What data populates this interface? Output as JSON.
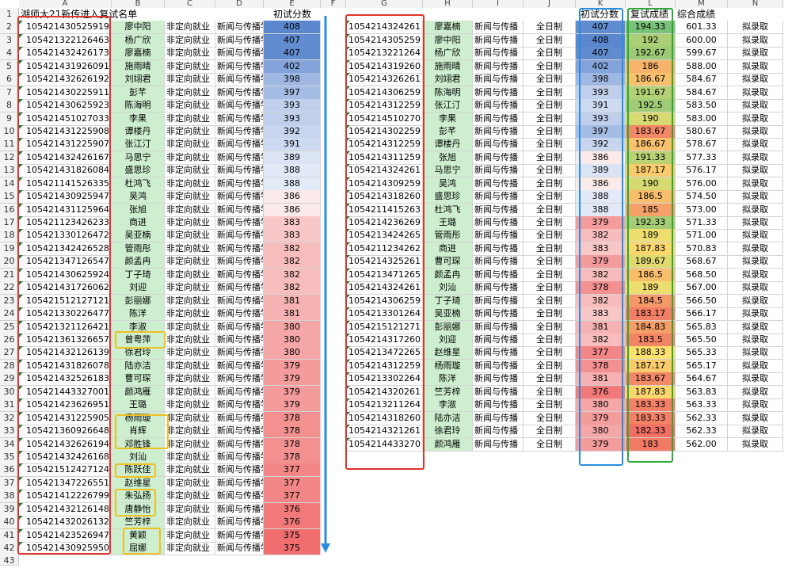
{
  "columns": [
    "A",
    "B",
    "C",
    "D",
    "E",
    "F",
    "G",
    "H",
    "I",
    "J",
    "K",
    "L",
    "M",
    "N"
  ],
  "row_numbers": [
    1,
    2,
    3,
    4,
    5,
    6,
    7,
    8,
    9,
    10,
    11,
    12,
    13,
    14,
    15,
    16,
    17,
    18,
    19,
    20,
    21,
    22,
    23,
    24,
    25,
    26,
    27,
    28,
    29,
    30,
    31,
    32,
    33,
    34,
    35,
    36,
    37,
    38,
    39,
    40,
    41,
    42,
    43
  ],
  "header_row": {
    "a1": "湖师大21新传进入复试名单",
    "e1": "初试分数",
    "k1": "初试分数",
    "l1": "复试成绩",
    "m1": "综合成绩"
  },
  "left_table": [
    [
      "105421430525919",
      "廖中阳",
      "非定向就业",
      "新闻与传播学",
      "408"
    ],
    [
      "105421322126463",
      "杨广欣",
      "非定向就业",
      "新闻与传播学",
      "407"
    ],
    [
      "105421432426173",
      "廖嘉楠",
      "非定向就业",
      "新闻与传播学",
      "407"
    ],
    [
      "105421431926091",
      "施雨晴",
      "非定向就业",
      "新闻与传播学",
      "402"
    ],
    [
      "105421432626192",
      "刘翊君",
      "非定向就业",
      "新闻与传播学",
      "398"
    ],
    [
      "105421430225911",
      "彭芊",
      "非定向就业",
      "新闻与传播学",
      "397"
    ],
    [
      "105421430625923",
      "陈海明",
      "非定向就业",
      "新闻与传播学",
      "393"
    ],
    [
      "105421451027033",
      "李果",
      "非定向就业",
      "新闻与传播学",
      "393"
    ],
    [
      "105421431225908",
      "谭楼丹",
      "非定向就业",
      "新闻与传播学",
      "392"
    ],
    [
      "105421431225907",
      "张江汀",
      "非定向就业",
      "新闻与传播学",
      "391"
    ],
    [
      "105421432426167",
      "马思宁",
      "非定向就业",
      "新闻与传播学",
      "389"
    ],
    [
      "105421431826084",
      "盛思珍",
      "非定向就业",
      "新闻与传播学",
      "388"
    ],
    [
      "105421141526335",
      "杜鸿飞",
      "非定向就业",
      "新闻与传播学",
      "388"
    ],
    [
      "105421430925947",
      "吴鸿",
      "非定向就业",
      "新闻与传播学",
      "386"
    ],
    [
      "105421431125964",
      "张旭",
      "非定向就业",
      "新闻与传播学",
      "386"
    ],
    [
      "105421123426233",
      "商进",
      "非定向就业",
      "新闻与传播学",
      "383"
    ],
    [
      "105421330126472",
      "吴亚楠",
      "非定向就业",
      "新闻与传播学",
      "383"
    ],
    [
      "105421342426528",
      "管雨彤",
      "非定向就业",
      "新闻与传播学",
      "382"
    ],
    [
      "105421347126547",
      "颜孟冉",
      "非定向就业",
      "新闻与传播学",
      "382"
    ],
    [
      "105421430625924",
      "丁子琦",
      "非定向就业",
      "新闻与传播学",
      "382"
    ],
    [
      "105421431726062",
      "刘迎",
      "非定向就业",
      "新闻与传播学",
      "382"
    ],
    [
      "105421512127121",
      "彭丽娜",
      "非定向就业",
      "新闻与传播学",
      "381"
    ],
    [
      "105421330226477",
      "陈洋",
      "非定向就业",
      "新闻与传播学",
      "381"
    ],
    [
      "105421321126421",
      "李淑",
      "非定向就业",
      "新闻与传播学",
      "380"
    ],
    [
      "105421361326657",
      "曾粤萍",
      "非定向就业",
      "新闻与传播学",
      "380"
    ],
    [
      "105421432126139",
      "徐君玲",
      "非定向就业",
      "新闻与传播学",
      "380"
    ],
    [
      "105421431826078",
      "陆亦洁",
      "非定向就业",
      "新闻与传播学",
      "379"
    ],
    [
      "105421432526183",
      "曹可琛",
      "非定向就业",
      "新闻与传播学",
      "379"
    ],
    [
      "105421443327001",
      "颜鸿雁",
      "非定向就业",
      "新闻与传播学",
      "379"
    ],
    [
      "105421423626951",
      "王璐",
      "非定向就业",
      "新闻与传播学",
      "379"
    ],
    [
      "105421431225905",
      "杨雨璇",
      "非定向就业",
      "新闻与传播学",
      "378"
    ],
    [
      "105421360926648",
      "肖辉",
      "非定向就业",
      "新闻与传播学",
      "378"
    ],
    [
      "105421432626194",
      "邓胜锋",
      "非定向就业",
      "新闻与传播学",
      "378"
    ],
    [
      "105421432426168",
      "刘汕",
      "非定向就业",
      "新闻与传播学",
      "378"
    ],
    [
      "105421512427124",
      "陈跃佳",
      "非定向就业",
      "新闻与传播学",
      "377"
    ],
    [
      "105421347226551",
      "赵维星",
      "非定向就业",
      "新闻与传播学",
      "377"
    ],
    [
      "105421412226799",
      "朱弘扬",
      "非定向就业",
      "新闻与传播学",
      "377"
    ],
    [
      "105421432126148",
      "唐静怡",
      "非定向就业",
      "新闻与传播学",
      "376"
    ],
    [
      "105421432026132",
      "竺芳梓",
      "非定向就业",
      "新闻与传播学",
      "376"
    ],
    [
      "105421423526947",
      "黄颖",
      "非定向就业",
      "新闻与传播学",
      "375"
    ],
    [
      "105421430925950",
      "屈娜",
      "非定向就业",
      "新闻与传播学",
      "375"
    ]
  ],
  "right_table": [
    [
      "1054214324261",
      "廖嘉楠",
      "新闻与传播",
      "全日制",
      "407",
      "194.33",
      "601.33",
      "拟录取"
    ],
    [
      "1054214305259",
      "廖中阳",
      "新闻与传播",
      "全日制",
      "408",
      "192",
      "600.00",
      "拟录取"
    ],
    [
      "1054213221264",
      "杨广欣",
      "新闻与传播",
      "全日制",
      "407",
      "192.67",
      "599.67",
      "拟录取"
    ],
    [
      "1054214319260",
      "施雨晴",
      "新闻与传播",
      "全日制",
      "402",
      "186",
      "588.00",
      "拟录取"
    ],
    [
      "1054214326261",
      "刘翊君",
      "新闻与传播",
      "全日制",
      "398",
      "186.67",
      "584.67",
      "拟录取"
    ],
    [
      "1054214306259",
      "陈海明",
      "新闻与传播",
      "全日制",
      "393",
      "191.67",
      "584.67",
      "拟录取"
    ],
    [
      "1054214312259",
      "张江汀",
      "新闻与传播",
      "全日制",
      "391",
      "192.5",
      "583.50",
      "拟录取"
    ],
    [
      "1054214510270",
      "李果",
      "新闻与传播",
      "全日制",
      "393",
      "190",
      "583.00",
      "拟录取"
    ],
    [
      "1054214302259",
      "彭芊",
      "新闻与传播",
      "全日制",
      "397",
      "183.67",
      "580.67",
      "拟录取"
    ],
    [
      "1054214312259",
      "谭楼丹",
      "新闻与传播",
      "全日制",
      "392",
      "186.67",
      "578.67",
      "拟录取"
    ],
    [
      "1054214311259",
      "张旭",
      "新闻与传播",
      "全日制",
      "386",
      "191.33",
      "577.33",
      "拟录取"
    ],
    [
      "1054214324261",
      "马思宁",
      "新闻与传播",
      "全日制",
      "389",
      "187.17",
      "576.17",
      "拟录取"
    ],
    [
      "1054214309259",
      "吴鸿",
      "新闻与传播",
      "全日制",
      "386",
      "190",
      "576.00",
      "拟录取"
    ],
    [
      "1054214318260",
      "盛思珍",
      "新闻与传播",
      "全日制",
      "388",
      "186.5",
      "574.50",
      "拟录取"
    ],
    [
      "1054211415263",
      "杜鸿飞",
      "新闻与传播",
      "全日制",
      "388",
      "185",
      "573.00",
      "拟录取"
    ],
    [
      "1054214236269",
      "王璐",
      "新闻与传播",
      "全日制",
      "379",
      "192.33",
      "571.33",
      "拟录取"
    ],
    [
      "1054213424265",
      "管雨彤",
      "新闻与传播",
      "全日制",
      "382",
      "189",
      "571.00",
      "拟录取"
    ],
    [
      "1054211234262",
      "商进",
      "新闻与传播",
      "全日制",
      "383",
      "187.83",
      "570.83",
      "拟录取"
    ],
    [
      "1054214325261",
      "曹可琛",
      "新闻与传播",
      "全日制",
      "379",
      "189.67",
      "568.67",
      "拟录取"
    ],
    [
      "1054213471265",
      "颜孟冉",
      "新闻与传播",
      "全日制",
      "382",
      "186.5",
      "568.50",
      "拟录取"
    ],
    [
      "1054214324261",
      "刘汕",
      "新闻与传播",
      "全日制",
      "378",
      "189",
      "567.00",
      "拟录取"
    ],
    [
      "1054214306259",
      "丁子琦",
      "新闻与传播",
      "全日制",
      "382",
      "184.5",
      "566.50",
      "拟录取"
    ],
    [
      "1054213301264",
      "吴亚楠",
      "新闻与传播",
      "全日制",
      "383",
      "183.17",
      "566.17",
      "拟录取"
    ],
    [
      "1054215121271",
      "彭丽娜",
      "新闻与传播",
      "全日制",
      "381",
      "184.83",
      "565.83",
      "拟录取"
    ],
    [
      "1054214317260",
      "刘迎",
      "新闻与传播",
      "全日制",
      "382",
      "183.5",
      "565.50",
      "拟录取"
    ],
    [
      "1054213472265",
      "赵维星",
      "新闻与传播",
      "全日制",
      "377",
      "188.33",
      "565.33",
      "拟录取"
    ],
    [
      "1054214312259",
      "杨雨璇",
      "新闻与传播",
      "全日制",
      "378",
      "187.17",
      "565.17",
      "拟录取"
    ],
    [
      "1054213302264",
      "陈洋",
      "新闻与传播",
      "全日制",
      "381",
      "183.67",
      "564.67",
      "拟录取"
    ],
    [
      "1054214320261",
      "竺芳梓",
      "新闻与传播",
      "全日制",
      "376",
      "187.83",
      "563.83",
      "拟录取"
    ],
    [
      "1054213211264",
      "李淑",
      "新闻与传播",
      "全日制",
      "380",
      "183.33",
      "563.33",
      "拟录取"
    ],
    [
      "1054214318260",
      "陆亦洁",
      "新闻与传播",
      "全日制",
      "379",
      "183.33",
      "562.33",
      "拟录取"
    ],
    [
      "1054214321261",
      "徐君玲",
      "新闻与传播",
      "全日制",
      "380",
      "182.33",
      "562.33",
      "拟录取"
    ],
    [
      "1054214433270",
      "颜鸿雁",
      "新闻与传播",
      "全日制",
      "379",
      "183",
      "562.00",
      "拟录取"
    ]
  ],
  "colors": {
    "red_box": "#e0342c",
    "yellow_box": "#f0c020",
    "blue_box": "#2a8ee0",
    "green_box": "#2ea83a",
    "arrow": "#2a8ee0",
    "name_fill": "#cdeecf"
  },
  "scales": {
    "initial_score_min": 375,
    "initial_score_max": 408,
    "retest_min": 182.33,
    "retest_max": 194.33
  }
}
